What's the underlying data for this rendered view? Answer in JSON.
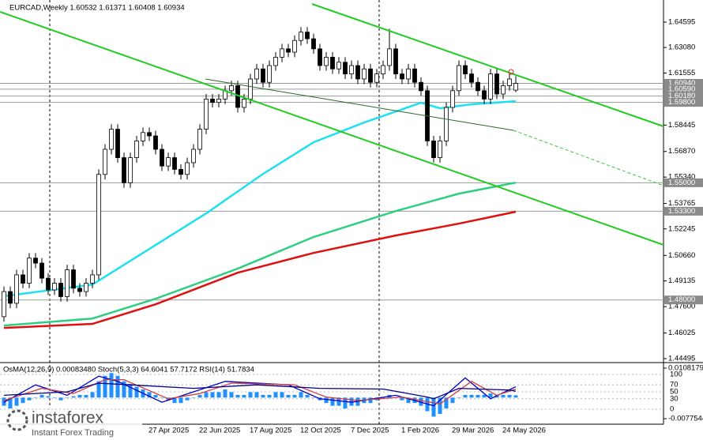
{
  "chart_data": [
    {
      "type": "candlestick",
      "title": "EURCAD,Weekly 1.60532 1.61371 1.60408 1.60934",
      "categories": [
        null,
        null,
        null,
        null,
        null,
        null,
        null,
        null,
        null,
        null,
        null,
        null,
        null,
        null,
        null,
        null,
        null,
        null,
        null,
        null,
        null,
        null,
        null,
        "27 Apr 2025",
        null,
        null,
        null,
        null,
        null,
        null,
        null,
        "22 Jun 2025",
        null,
        null,
        null,
        null,
        null,
        null,
        null,
        "17 Aug 2025",
        null,
        null,
        null,
        null,
        null,
        null,
        null,
        "12 Oct 2025",
        null,
        null,
        null,
        null,
        null,
        null,
        null,
        "7 Dec 2025",
        null,
        null,
        null,
        null,
        null,
        null,
        null,
        "1 Feb 2026",
        null,
        null,
        null,
        null,
        null,
        null,
        null,
        "29 Mar 2026",
        null,
        null,
        null,
        null,
        null,
        null,
        null,
        "24 May 2026",
        null,
        null
      ],
      "open": [
        1.47,
        1.485,
        1.478,
        1.495,
        1.49,
        1.505,
        1.502,
        1.493,
        1.486,
        1.49,
        1.482,
        1.498,
        1.487,
        1.485,
        1.49,
        1.495,
        1.555,
        1.57,
        1.582,
        1.565,
        1.55,
        1.565,
        1.575,
        1.58,
        1.578,
        1.57,
        1.56,
        1.565,
        1.558,
        1.555,
        1.562,
        1.57,
        1.582,
        1.6,
        1.598,
        1.6,
        1.605,
        1.608,
        1.595,
        1.6,
        1.612,
        1.618,
        1.61,
        1.62,
        1.625,
        1.63,
        1.628,
        1.635,
        1.64,
        1.636,
        1.63,
        1.62,
        1.625,
        1.618,
        1.622,
        1.615,
        1.62,
        1.612,
        1.618,
        1.61,
        1.615,
        1.62,
        1.63,
        1.615,
        1.612,
        1.618,
        1.61,
        1.605,
        1.575,
        1.565,
        1.575,
        1.595,
        1.605,
        1.62,
        1.615,
        1.61,
        1.605,
        1.6,
        1.615,
        1.603,
        1.608,
        1.60532
      ],
      "high": [
        1.488,
        1.488,
        1.498,
        1.498,
        1.508,
        1.508,
        1.505,
        1.496,
        1.493,
        1.493,
        1.501,
        1.501,
        1.49,
        1.493,
        1.498,
        1.558,
        1.573,
        1.585,
        1.585,
        1.568,
        1.568,
        1.578,
        1.583,
        1.583,
        1.581,
        1.573,
        1.568,
        1.568,
        1.561,
        1.565,
        1.573,
        1.585,
        1.603,
        1.603,
        1.603,
        1.608,
        1.611,
        1.611,
        1.603,
        1.615,
        1.621,
        1.621,
        1.623,
        1.628,
        1.633,
        1.633,
        1.638,
        1.643,
        1.643,
        1.639,
        1.633,
        1.628,
        1.628,
        1.625,
        1.625,
        1.623,
        1.623,
        1.621,
        1.621,
        1.618,
        1.623,
        1.642,
        1.633,
        1.618,
        1.621,
        1.621,
        1.613,
        1.608,
        1.578,
        1.578,
        1.598,
        1.608,
        1.623,
        1.623,
        1.618,
        1.613,
        1.608,
        1.618,
        1.618,
        1.611,
        1.615,
        1.61371
      ],
      "low": [
        1.467,
        1.475,
        1.475,
        1.487,
        1.487,
        1.499,
        1.49,
        1.483,
        1.483,
        1.479,
        1.479,
        1.484,
        1.482,
        1.482,
        1.487,
        1.492,
        1.552,
        1.567,
        1.562,
        1.547,
        1.547,
        1.562,
        1.572,
        1.575,
        1.567,
        1.557,
        1.557,
        1.555,
        1.552,
        1.552,
        1.559,
        1.567,
        1.579,
        1.595,
        1.595,
        1.597,
        1.602,
        1.592,
        1.592,
        1.597,
        1.609,
        1.607,
        1.607,
        1.617,
        1.622,
        1.625,
        1.625,
        1.632,
        1.633,
        1.627,
        1.617,
        1.617,
        1.615,
        1.615,
        1.612,
        1.612,
        1.609,
        1.609,
        1.607,
        1.607,
        1.612,
        1.617,
        1.612,
        1.609,
        1.609,
        1.607,
        1.602,
        1.572,
        1.562,
        1.562,
        1.572,
        1.592,
        1.602,
        1.612,
        1.607,
        1.602,
        1.597,
        1.597,
        1.6,
        1.6,
        1.605,
        1.60408
      ],
      "close": [
        1.485,
        1.478,
        1.495,
        1.49,
        1.505,
        1.502,
        1.493,
        1.486,
        1.49,
        1.482,
        1.498,
        1.487,
        1.485,
        1.49,
        1.495,
        1.555,
        1.57,
        1.582,
        1.565,
        1.55,
        1.565,
        1.575,
        1.58,
        1.578,
        1.57,
        1.56,
        1.565,
        1.558,
        1.555,
        1.562,
        1.57,
        1.582,
        1.6,
        1.598,
        1.6,
        1.605,
        1.608,
        1.595,
        1.6,
        1.612,
        1.618,
        1.61,
        1.62,
        1.625,
        1.63,
        1.628,
        1.635,
        1.64,
        1.636,
        1.63,
        1.62,
        1.625,
        1.618,
        1.622,
        1.615,
        1.62,
        1.612,
        1.618,
        1.61,
        1.615,
        1.62,
        1.63,
        1.615,
        1.612,
        1.618,
        1.61,
        1.605,
        1.575,
        1.565,
        1.575,
        1.595,
        1.605,
        1.62,
        1.615,
        1.61,
        1.605,
        1.6,
        1.615,
        1.603,
        1.608,
        1.612,
        1.60934
      ],
      "ylim": [
        1.44306,
        1.65917
      ],
      "yticks": [
        {
          "value": 1.64595,
          "label": "1.64595"
        },
        {
          "value": 1.6308,
          "label": "1.63080"
        },
        {
          "value": 1.61555,
          "label": "1.61555"
        },
        {
          "value": 1.58445,
          "label": "1.58445"
        },
        {
          "value": 1.5687,
          "label": "1.56870"
        },
        {
          "value": 1.5534,
          "label": "1.55340"
        },
        {
          "value": 1.53765,
          "label": "1.53765"
        },
        {
          "value": 1.52245,
          "label": "1.52245"
        },
        {
          "value": 1.5066,
          "label": "1.50660"
        },
        {
          "value": 1.49135,
          "label": "1.49135"
        },
        {
          "value": 1.476,
          "label": "1.47600"
        },
        {
          "value": 1.46025,
          "label": "1.46025"
        },
        {
          "value": 1.44495,
          "label": "1.44495"
        }
      ],
      "levels": [
        {
          "value": 1.6094,
          "label": "1.60940"
        },
        {
          "value": 1.6059,
          "label": "1.60590"
        },
        {
          "value": 1.6018,
          "label": "1.60180"
        },
        {
          "value": 1.598,
          "label": "1.59800"
        },
        {
          "value": 1.55,
          "label": "1.55000"
        },
        {
          "value": 1.533,
          "label": "1.53300"
        },
        {
          "value": 1.48,
          "label": "1.48000"
        }
      ],
      "series": [
        {
          "color": "#1ee0f0",
          "x": [
            0,
            14,
            24,
            32,
            41,
            49,
            57,
            66,
            69,
            74,
            81
          ],
          "values": [
            1.4822,
            1.4892,
            1.5128,
            1.5317,
            1.5553,
            1.5742,
            1.586,
            1.5978,
            1.5945,
            1.5969,
            1.5987
          ]
        },
        {
          "color": "#2ecf80",
          "x": [
            0,
            14,
            24,
            37,
            49,
            62,
            72,
            81
          ],
          "values": [
            1.4647,
            1.4689,
            1.4807,
            1.4987,
            1.5176,
            1.5331,
            1.5435,
            1.5501
          ]
        },
        {
          "color": "#e01010",
          "x": [
            0,
            14,
            24,
            37,
            49,
            62,
            72,
            81
          ],
          "values": [
            1.4633,
            1.4657,
            1.4774,
            1.4963,
            1.5081,
            1.5185,
            1.5256,
            1.5327
          ]
        }
      ]
    },
    {
      "type": "indicator",
      "title": "OsMA(12,26,9) 0.00083480 Stoch(5,3,3) 64.6041 57.7172 RSI(14) 51.7834",
      "ylim": [
        -40.9,
        131.8
      ],
      "yticks": [
        100,
        70,
        50,
        30,
        0
      ],
      "y2lim": [
        -0.0094808,
        0.0125593
      ],
      "y2ticks": [
        0.0108179,
        -0.0077544
      ],
      "series": [
        {
          "type": "bar",
          "axis": "y2",
          "color": "#1e90ff",
          "values": [
            -0.003,
            -0.004,
            -0.003,
            -0.002,
            -0.001,
            0,
            0.001,
            0.0005,
            0,
            -0.001,
            0,
            0.0005,
            0.001,
            0.001,
            0.002,
            0.006,
            0.008,
            0.009,
            0.008,
            0.006,
            0.005,
            0.004,
            0.003,
            0.002,
            0.001,
            0,
            -0.001,
            -0.002,
            -0.002,
            -0.001,
            0,
            0.001,
            0.002,
            0.002,
            0.002,
            0.003,
            0.002,
            0.001,
            0.001,
            0.002,
            0.002,
            0.001,
            0.001,
            0.002,
            0.002,
            0.001,
            0.001,
            0.002,
            0.001,
            0,
            -0.001,
            -0.002,
            -0.003,
            -0.003,
            -0.004,
            -0.003,
            -0.003,
            -0.002,
            -0.002,
            -0.001,
            0,
            0.001,
            0,
            -0.001,
            -0.002,
            -0.002,
            -0.003,
            -0.005,
            -0.007,
            -0.006,
            -0.004,
            -0.002,
            0,
            0.001,
            0.001,
            0.001,
            0.001,
            0.0015,
            0.001,
            0.001,
            0.001,
            0.0008348
          ]
        },
        {
          "type": "line",
          "color": "#0000c0",
          "x": [
            0,
            5,
            10,
            15,
            18,
            25,
            30,
            35,
            45,
            50,
            55,
            62,
            68,
            73,
            77,
            81
          ],
          "values": [
            20,
            70,
            40,
            95,
            80,
            20,
            50,
            80,
            70,
            30,
            20,
            40,
            10,
            90,
            30,
            64.6041
          ]
        },
        {
          "type": "line",
          "color": "#d04040",
          "x": [
            0,
            6,
            11,
            16,
            19,
            26,
            31,
            36,
            46,
            51,
            56,
            63,
            69,
            74,
            78,
            81
          ],
          "values": [
            25,
            60,
            45,
            85,
            85,
            30,
            45,
            75,
            70,
            35,
            25,
            35,
            15,
            80,
            40,
            57.7172
          ]
        },
        {
          "type": "line",
          "color": "#00008b",
          "x": [
            0,
            10,
            15,
            20,
            30,
            40,
            50,
            60,
            67,
            68,
            72,
            80,
            81
          ],
          "values": [
            40,
            50,
            75,
            70,
            60,
            70,
            60,
            58,
            35,
            30,
            60,
            55,
            51.7834
          ]
        }
      ]
    }
  ],
  "brand": {
    "name": "instaforex",
    "tagline": "Instant Forex Trading"
  }
}
